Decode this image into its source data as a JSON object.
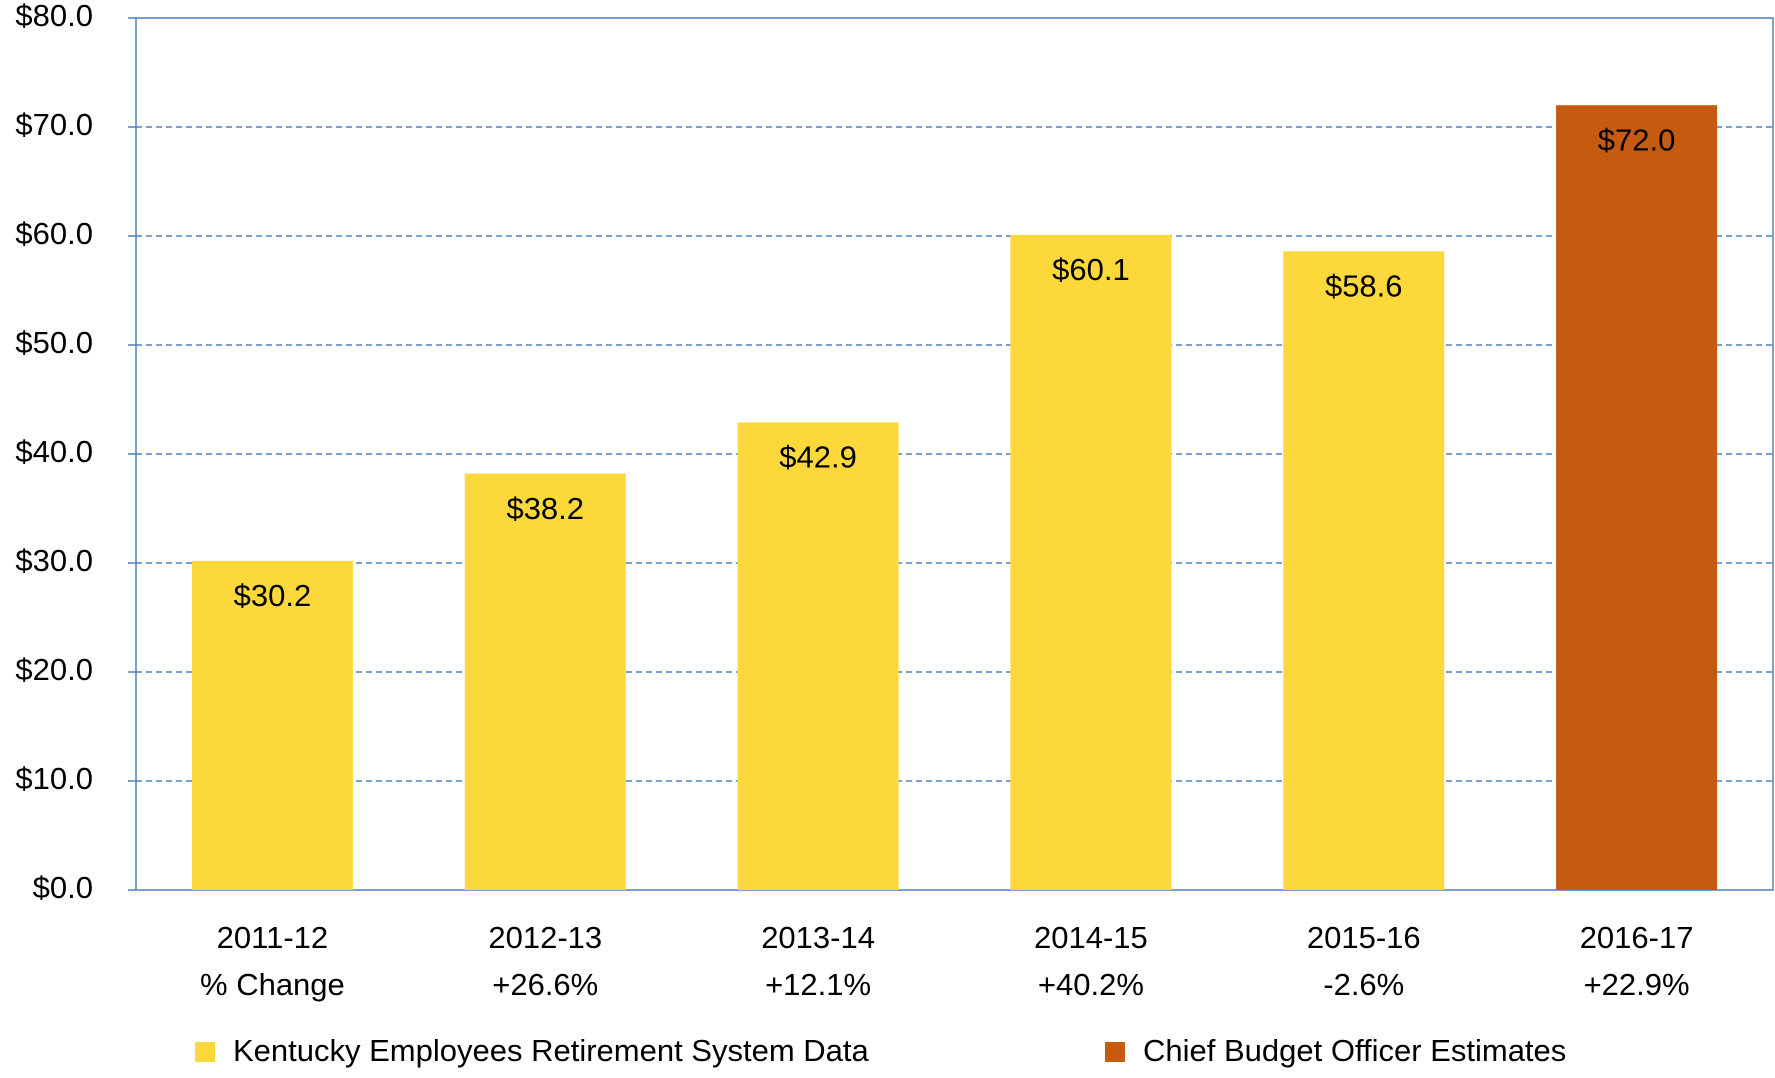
{
  "chart_data": {
    "type": "bar",
    "categories": [
      "2011-12",
      "2012-13",
      "2013-14",
      "2014-15",
      "2015-16",
      "2016-17"
    ],
    "category_notes": [
      "% Change",
      "+26.6%",
      "+12.1%",
      "+40.2%",
      "-2.6%",
      "+22.9%"
    ],
    "series": [
      {
        "name": "Kentucky Employees Retirement System Data",
        "color": "#fdd83a",
        "values": [
          30.2,
          38.2,
          42.9,
          60.1,
          58.6,
          null
        ],
        "value_labels": [
          "$30.2",
          "$38.2",
          "$42.9",
          "$60.1",
          "$58.6",
          null
        ]
      },
      {
        "name": "Chief Budget Officer Estimates",
        "color": "#c55a11",
        "values": [
          null,
          null,
          null,
          null,
          null,
          72.0
        ],
        "value_labels": [
          null,
          null,
          null,
          null,
          null,
          "$72.0"
        ]
      }
    ],
    "ylim": [
      0,
      80
    ],
    "yticks": [
      {
        "value": 0,
        "label": "$0.0"
      },
      {
        "value": 10,
        "label": "$10.0"
      },
      {
        "value": 20,
        "label": "$20.0"
      },
      {
        "value": 30,
        "label": "$30.0"
      },
      {
        "value": 40,
        "label": "$40.0"
      },
      {
        "value": 50,
        "label": "$50.0"
      },
      {
        "value": 60,
        "label": "$60.0"
      },
      {
        "value": 70,
        "label": "$70.0"
      },
      {
        "value": 80,
        "label": "$80.0"
      }
    ],
    "grid": true,
    "legend": "bottom"
  }
}
